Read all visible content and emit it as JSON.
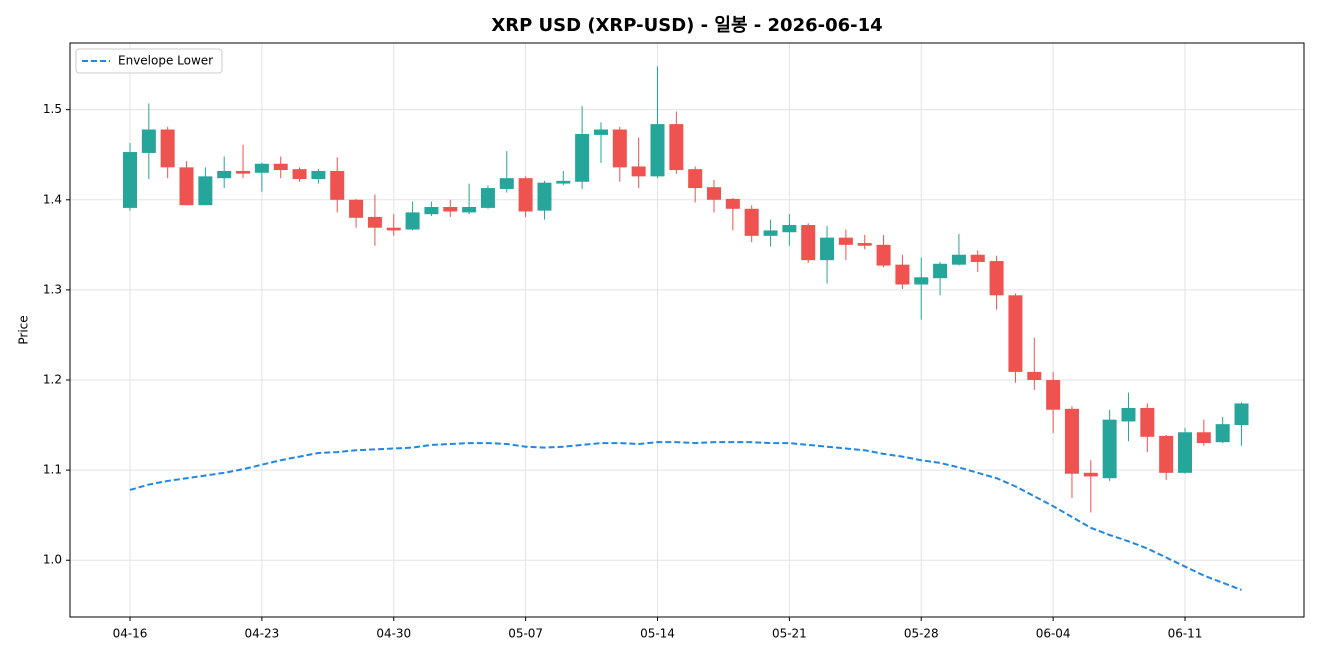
{
  "chart_data": {
    "type": "candlestick",
    "title": "XRP USD (XRP-USD) - 일봉 - 2026-06-14",
    "ylabel": "Price",
    "categories": [
      "04-16",
      "04-17",
      "04-18",
      "04-19",
      "04-20",
      "04-21",
      "04-22",
      "04-23",
      "04-24",
      "04-25",
      "04-26",
      "04-27",
      "04-28",
      "04-29",
      "04-30",
      "05-01",
      "05-02",
      "05-03",
      "05-04",
      "05-05",
      "05-06",
      "05-07",
      "05-08",
      "05-09",
      "05-10",
      "05-11",
      "05-12",
      "05-13",
      "05-14",
      "05-15",
      "05-16",
      "05-17",
      "05-18",
      "05-19",
      "05-20",
      "05-21",
      "05-22",
      "05-23",
      "05-24",
      "05-25",
      "05-26",
      "05-27",
      "05-28",
      "05-29",
      "05-30",
      "05-31",
      "06-01",
      "06-02",
      "06-03",
      "06-04",
      "06-05",
      "06-06",
      "06-07",
      "06-08",
      "06-09",
      "06-10",
      "06-11",
      "06-12",
      "06-13",
      "06-14"
    ],
    "xticks": [
      "04-16",
      "04-23",
      "04-30",
      "05-07",
      "05-14",
      "05-21",
      "05-28",
      "06-04",
      "06-11"
    ],
    "open": [
      1.391,
      1.452,
      1.478,
      1.436,
      1.394,
      1.424,
      1.432,
      1.43,
      1.44,
      1.434,
      1.423,
      1.432,
      1.4,
      1.381,
      1.369,
      1.367,
      1.384,
      1.392,
      1.386,
      1.391,
      1.412,
      1.424,
      1.388,
      1.418,
      1.42,
      1.472,
      1.478,
      1.437,
      1.426,
      1.484,
      1.434,
      1.414,
      1.401,
      1.39,
      1.36,
      1.364,
      1.372,
      1.333,
      1.358,
      1.352,
      1.35,
      1.328,
      1.306,
      1.313,
      1.328,
      1.339,
      1.332,
      1.294,
      1.209,
      1.2,
      1.168,
      1.097,
      1.091,
      1.154,
      1.169,
      1.138,
      1.097,
      1.142,
      1.131,
      1.15
    ],
    "high": [
      1.463,
      1.507,
      1.481,
      1.443,
      1.436,
      1.448,
      1.461,
      1.441,
      1.448,
      1.436,
      1.434,
      1.447,
      1.401,
      1.406,
      1.384,
      1.398,
      1.398,
      1.4,
      1.418,
      1.416,
      1.454,
      1.426,
      1.421,
      1.432,
      1.504,
      1.486,
      1.481,
      1.469,
      1.548,
      1.498,
      1.437,
      1.422,
      1.402,
      1.394,
      1.378,
      1.384,
      1.374,
      1.371,
      1.367,
      1.361,
      1.361,
      1.339,
      1.336,
      1.331,
      1.362,
      1.344,
      1.338,
      1.296,
      1.247,
      1.209,
      1.171,
      1.111,
      1.167,
      1.186,
      1.174,
      1.139,
      1.147,
      1.156,
      1.159,
      1.175
    ],
    "low": [
      1.388,
      1.423,
      1.424,
      1.394,
      1.394,
      1.413,
      1.424,
      1.409,
      1.424,
      1.42,
      1.418,
      1.386,
      1.369,
      1.349,
      1.36,
      1.366,
      1.382,
      1.381,
      1.384,
      1.39,
      1.408,
      1.381,
      1.378,
      1.416,
      1.412,
      1.441,
      1.42,
      1.413,
      1.424,
      1.429,
      1.397,
      1.386,
      1.366,
      1.353,
      1.348,
      1.349,
      1.33,
      1.307,
      1.333,
      1.345,
      1.325,
      1.301,
      1.267,
      1.294,
      1.327,
      1.32,
      1.278,
      1.197,
      1.189,
      1.141,
      1.069,
      1.053,
      1.088,
      1.132,
      1.12,
      1.089,
      1.096,
      1.127,
      1.13,
      1.127
    ],
    "close": [
      1.453,
      1.478,
      1.436,
      1.394,
      1.426,
      1.432,
      1.429,
      1.44,
      1.433,
      1.423,
      1.432,
      1.4,
      1.38,
      1.369,
      1.366,
      1.386,
      1.392,
      1.387,
      1.392,
      1.413,
      1.424,
      1.387,
      1.419,
      1.421,
      1.473,
      1.478,
      1.436,
      1.426,
      1.484,
      1.433,
      1.413,
      1.4,
      1.39,
      1.36,
      1.366,
      1.372,
      1.333,
      1.358,
      1.35,
      1.349,
      1.327,
      1.306,
      1.314,
      1.329,
      1.339,
      1.331,
      1.294,
      1.209,
      1.2,
      1.167,
      1.096,
      1.093,
      1.156,
      1.169,
      1.137,
      1.097,
      1.142,
      1.13,
      1.151,
      1.174
    ],
    "up_color": "#26a69a",
    "down_color": "#ef5350",
    "lines": [
      {
        "name": "Envelope Lower",
        "color": "#1e88e5",
        "dash": true,
        "values": [
          1.078,
          1.084,
          1.088,
          1.091,
          1.094,
          1.097,
          1.101,
          1.106,
          1.111,
          1.115,
          1.119,
          1.12,
          1.122,
          1.123,
          1.124,
          1.125,
          1.128,
          1.129,
          1.13,
          1.13,
          1.129,
          1.126,
          1.125,
          1.126,
          1.128,
          1.13,
          1.13,
          1.129,
          1.131,
          1.131,
          1.13,
          1.131,
          1.131,
          1.131,
          1.13,
          1.13,
          1.128,
          1.126,
          1.124,
          1.122,
          1.118,
          1.115,
          1.111,
          1.108,
          1.103,
          1.097,
          1.091,
          1.082,
          1.071,
          1.06,
          1.048,
          1.036,
          1.028,
          1.021,
          1.013,
          1.003,
          0.993,
          0.983,
          0.975,
          0.967
        ]
      }
    ],
    "ylim": [
      0.937,
      1.574
    ],
    "yticks": [
      {
        "value": 1,
        "label": "1.0"
      },
      1.1,
      1.2,
      1.3,
      1.4,
      1.5
    ],
    "grid": true,
    "legend": "upper left"
  }
}
